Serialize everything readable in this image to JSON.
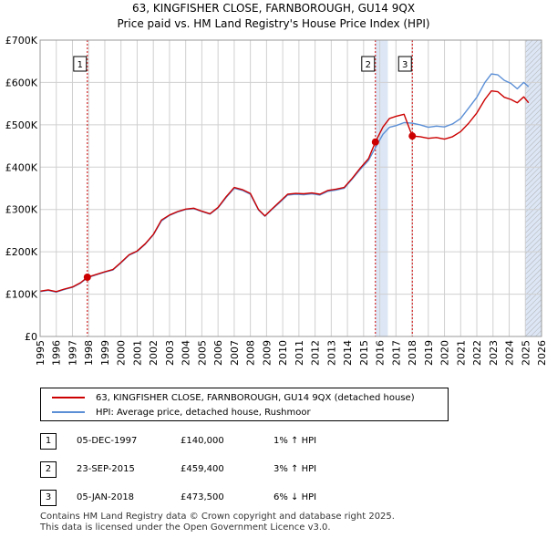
{
  "title_line1": "63, KINGFISHER CLOSE, FARNBOROUGH, GU14 9QX",
  "title_line2": "Price paid vs. HM Land Registry's House Price Index (HPI)",
  "chart_data": {
    "type": "line",
    "xlim": [
      1995,
      2026
    ],
    "ylim": [
      0,
      700000
    ],
    "x_ticks": [
      1995,
      1996,
      1997,
      1998,
      1999,
      2000,
      2001,
      2002,
      2003,
      2004,
      2005,
      2006,
      2007,
      2008,
      2009,
      2010,
      2011,
      2012,
      2013,
      2014,
      2015,
      2016,
      2017,
      2018,
      2019,
      2020,
      2021,
      2022,
      2023,
      2024,
      2025,
      2026
    ],
    "y_ticks": [
      0,
      100000,
      200000,
      300000,
      400000,
      500000,
      600000,
      700000
    ],
    "y_tick_labels": [
      "£0",
      "£100K",
      "£200K",
      "£300K",
      "£400K",
      "£500K",
      "£600K",
      "£700K"
    ],
    "colors": {
      "price": "#cc0000",
      "hpi": "#5b8fd6",
      "shade": "#dce6f5",
      "grid": "#d0d0d0"
    },
    "series": [
      {
        "name": "63, KINGFISHER CLOSE, FARNBOROUGH, GU14 9QX (detached house)",
        "x": [
          1995.0,
          1995.5,
          1996.0,
          1996.5,
          1997.0,
          1997.5,
          1997.92,
          1998.5,
          1999.0,
          1999.5,
          2000.0,
          2000.5,
          2001.0,
          2001.5,
          2002.0,
          2002.5,
          2003.0,
          2003.5,
          2004.0,
          2004.5,
          2005.0,
          2005.5,
          2006.0,
          2006.5,
          2007.0,
          2007.5,
          2008.0,
          2008.5,
          2008.9,
          2009.3,
          2009.8,
          2010.3,
          2010.8,
          2011.3,
          2011.8,
          2012.3,
          2012.8,
          2013.3,
          2013.8,
          2014.3,
          2014.8,
          2015.3,
          2015.73,
          2016.2,
          2016.6,
          2017.0,
          2017.5,
          2018.01,
          2018.5,
          2019.0,
          2019.5,
          2020.0,
          2020.5,
          2021.0,
          2021.5,
          2022.0,
          2022.5,
          2022.9,
          2023.3,
          2023.7,
          2024.1,
          2024.5,
          2024.9,
          2025.2
        ],
        "values": [
          107000,
          110000,
          106000,
          112000,
          117000,
          127000,
          140000,
          147000,
          153000,
          158000,
          175000,
          193000,
          202000,
          219000,
          241000,
          275000,
          287000,
          295000,
          301000,
          303000,
          296000,
          290000,
          305000,
          330000,
          352000,
          347000,
          338000,
          300000,
          285000,
          300000,
          318000,
          336000,
          338000,
          337000,
          339000,
          336000,
          345000,
          348000,
          352000,
          374000,
          398000,
          420000,
          459400,
          495000,
          515000,
          520000,
          525000,
          473500,
          472000,
          468000,
          470000,
          466000,
          472000,
          484000,
          504000,
          528000,
          560000,
          580000,
          578000,
          565000,
          560000,
          552000,
          566000,
          552000
        ]
      },
      {
        "name": "HPI: Average price, detached house, Rushmoor",
        "x": [
          1995.0,
          1995.5,
          1996.0,
          1996.5,
          1997.0,
          1997.5,
          1997.92,
          1998.5,
          1999.0,
          1999.5,
          2000.0,
          2000.5,
          2001.0,
          2001.5,
          2002.0,
          2002.5,
          2003.0,
          2003.5,
          2004.0,
          2004.5,
          2005.0,
          2005.5,
          2006.0,
          2006.5,
          2007.0,
          2007.5,
          2008.0,
          2008.5,
          2008.9,
          2009.3,
          2009.8,
          2010.3,
          2010.8,
          2011.3,
          2011.8,
          2012.3,
          2012.8,
          2013.3,
          2013.8,
          2014.3,
          2014.8,
          2015.3,
          2015.73,
          2016.2,
          2016.6,
          2017.0,
          2017.5,
          2018.01,
          2018.5,
          2019.0,
          2019.5,
          2020.0,
          2020.5,
          2021.0,
          2021.5,
          2022.0,
          2022.5,
          2022.9,
          2023.3,
          2023.7,
          2024.1,
          2024.5,
          2024.9,
          2025.2
        ],
        "values": [
          106000,
          109000,
          105000,
          111000,
          116000,
          126000,
          138600,
          146000,
          152000,
          157000,
          174000,
          192000,
          201000,
          218000,
          240000,
          273000,
          286000,
          294000,
          300000,
          302000,
          295000,
          289000,
          304000,
          328000,
          350000,
          345000,
          336000,
          299000,
          284000,
          299000,
          316000,
          334000,
          336000,
          335000,
          337000,
          334000,
          343000,
          346000,
          350000,
          372000,
          395000,
          416000,
          446000,
          478000,
          494000,
          498000,
          505000,
          503700,
          500000,
          494000,
          497000,
          495000,
          502000,
          515000,
          540000,
          565000,
          600000,
          620000,
          618000,
          605000,
          598000,
          585000,
          600000,
          590000
        ]
      }
    ],
    "sales": [
      {
        "label": "1",
        "x": 1997.92,
        "value": 140000
      },
      {
        "label": "2",
        "x": 2015.73,
        "value": 459400
      },
      {
        "label": "3",
        "x": 2018.01,
        "value": 473500
      }
    ],
    "shaded_ranges": [
      [
        2015.73,
        2016.5
      ],
      [
        2025.0,
        2026.0
      ]
    ],
    "hatched_range": [
      2025.0,
      2026.0
    ]
  },
  "legend": {
    "price_label": "63, KINGFISHER CLOSE, FARNBOROUGH, GU14 9QX (detached house)",
    "hpi_label": "HPI: Average price, detached house, Rushmoor"
  },
  "transactions": [
    {
      "num": "1",
      "date": "05-DEC-1997",
      "price": "£140,000",
      "hpi": "1% ↑ HPI"
    },
    {
      "num": "2",
      "date": "23-SEP-2015",
      "price": "£459,400",
      "hpi": "3% ↑ HPI"
    },
    {
      "num": "3",
      "date": "05-JAN-2018",
      "price": "£473,500",
      "hpi": "6% ↓ HPI"
    }
  ],
  "footer": {
    "line1": "Contains HM Land Registry data © Crown copyright and database right 2025.",
    "line2": "This data is licensed under the Open Government Licence v3.0."
  }
}
